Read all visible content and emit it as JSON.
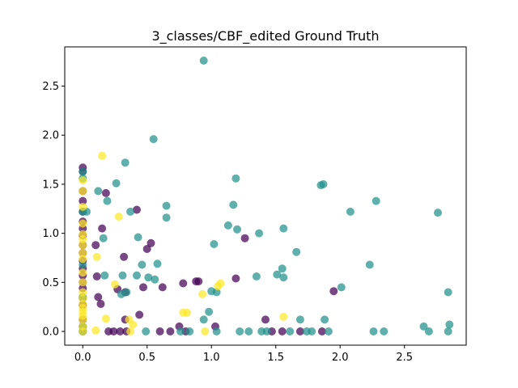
{
  "chart_data": {
    "type": "scatter",
    "title": "3_classes/CBF_edited Ground Truth",
    "xlabel": "",
    "ylabel": "",
    "xlim": [
      -0.14,
      2.98
    ],
    "ylim": [
      -0.14,
      2.9
    ],
    "xticks": [
      "0.0",
      "0.5",
      "1.0",
      "1.5",
      "2.0",
      "2.5"
    ],
    "yticks": [
      "0.0",
      "0.5",
      "1.0",
      "1.5",
      "2.0",
      "2.5"
    ],
    "grid": false,
    "legend": "none",
    "series": [
      {
        "color": "#440154",
        "points": [
          [
            0.0,
            1.67
          ],
          [
            0.0,
            1.63
          ],
          [
            0.0,
            1.43
          ],
          [
            0.0,
            1.33
          ],
          [
            0.0,
            1.22
          ],
          [
            0.0,
            1.12
          ],
          [
            0.0,
            1.05
          ],
          [
            0.0,
            0.98
          ],
          [
            0.0,
            0.88
          ],
          [
            0.0,
            0.8
          ],
          [
            0.0,
            0.72
          ],
          [
            0.0,
            0.64
          ],
          [
            0.0,
            0.57
          ],
          [
            0.0,
            0.5
          ],
          [
            0.0,
            0.44
          ],
          [
            0.0,
            0.34
          ],
          [
            0.0,
            0.27
          ],
          [
            0.0,
            0.12
          ],
          [
            0.0,
            0.05
          ],
          [
            0.0,
            0.0
          ],
          [
            0.1,
            0.88
          ],
          [
            0.11,
            0.56
          ],
          [
            0.12,
            0.35
          ],
          [
            0.14,
            0.28
          ],
          [
            0.15,
            1.05
          ],
          [
            0.18,
            1.41
          ],
          [
            0.2,
            0.0
          ],
          [
            0.24,
            0.0
          ],
          [
            0.27,
            0.43
          ],
          [
            0.29,
            0.0
          ],
          [
            0.32,
            0.76
          ],
          [
            0.33,
            0.4
          ],
          [
            0.33,
            0.12
          ],
          [
            0.34,
            0.0
          ],
          [
            0.42,
            1.24
          ],
          [
            0.44,
            0.17
          ],
          [
            0.47,
            0.45
          ],
          [
            0.5,
            0.84
          ],
          [
            0.53,
            0.9
          ],
          [
            0.6,
            0.0
          ],
          [
            0.62,
            0.45
          ],
          [
            0.68,
            0.0
          ],
          [
            0.75,
            0.05
          ],
          [
            0.78,
            0.49
          ],
          [
            0.8,
            0.0
          ],
          [
            0.88,
            0.51
          ],
          [
            0.9,
            0.51
          ],
          [
            1.03,
            0.05
          ],
          [
            1.19,
            0.54
          ],
          [
            1.26,
            0.95
          ],
          [
            1.42,
            0.12
          ],
          [
            1.47,
            0.0
          ],
          [
            1.55,
            0.0
          ],
          [
            1.69,
            0.0
          ],
          [
            1.86,
            0.0
          ],
          [
            1.95,
            0.41
          ]
        ]
      },
      {
        "color": "#21918c",
        "points": [
          [
            0.0,
            1.63
          ],
          [
            0.0,
            1.56
          ],
          [
            0.0,
            1.22
          ],
          [
            0.0,
            0.68
          ],
          [
            0.0,
            0.35
          ],
          [
            0.0,
            0.05
          ],
          [
            0.0,
            0.0
          ],
          [
            0.03,
            1.22
          ],
          [
            0.12,
            1.43
          ],
          [
            0.16,
            0.95
          ],
          [
            0.17,
            0.57
          ],
          [
            0.19,
            1.33
          ],
          [
            0.26,
            1.51
          ],
          [
            0.3,
            0.38
          ],
          [
            0.31,
            0.57
          ],
          [
            0.33,
            1.72
          ],
          [
            0.34,
            0.4
          ],
          [
            0.37,
            1.22
          ],
          [
            0.42,
            0.57
          ],
          [
            0.43,
            0.96
          ],
          [
            0.46,
            0.68
          ],
          [
            0.49,
            0.0
          ],
          [
            0.51,
            0.55
          ],
          [
            0.55,
            1.96
          ],
          [
            0.56,
            0.53
          ],
          [
            0.58,
            0.69
          ],
          [
            0.65,
            1.28
          ],
          [
            0.65,
            1.16
          ],
          [
            0.76,
            0.0
          ],
          [
            0.83,
            0.0
          ],
          [
            0.94,
            2.76
          ],
          [
            0.94,
            0.12
          ],
          [
            0.98,
            0.2
          ],
          [
            1.0,
            0.41
          ],
          [
            1.02,
            0.89
          ],
          [
            1.04,
            0.4
          ],
          [
            1.04,
            0.0
          ],
          [
            1.13,
            1.08
          ],
          [
            1.17,
            1.29
          ],
          [
            1.19,
            1.56
          ],
          [
            1.2,
            1.04
          ],
          [
            1.22,
            0.0
          ],
          [
            1.29,
            0.0
          ],
          [
            1.35,
            0.56
          ],
          [
            1.37,
            1.0
          ],
          [
            1.39,
            0.0
          ],
          [
            1.43,
            0.0
          ],
          [
            1.51,
            0.58
          ],
          [
            1.55,
            0.64
          ],
          [
            1.56,
            1.05
          ],
          [
            1.56,
            0.55
          ],
          [
            1.61,
            0.0
          ],
          [
            1.66,
            0.81
          ],
          [
            1.69,
            0.12
          ],
          [
            1.74,
            0.0
          ],
          [
            1.78,
            0.0
          ],
          [
            1.85,
            1.49
          ],
          [
            1.87,
            1.5
          ],
          [
            1.88,
            0.12
          ],
          [
            1.91,
            0.0
          ],
          [
            2.01,
            0.45
          ],
          [
            2.08,
            1.22
          ],
          [
            2.23,
            0.68
          ],
          [
            2.26,
            0.0
          ],
          [
            2.28,
            1.33
          ],
          [
            2.34,
            0.0
          ],
          [
            2.65,
            0.05
          ],
          [
            2.69,
            0.0
          ],
          [
            2.76,
            1.21
          ],
          [
            2.84,
            0.0
          ],
          [
            2.84,
            0.4
          ],
          [
            2.85,
            0.07
          ]
        ]
      },
      {
        "color": "#fde725",
        "points": [
          [
            0.0,
            1.54
          ],
          [
            0.0,
            1.43
          ],
          [
            0.0,
            1.27
          ],
          [
            0.0,
            1.1
          ],
          [
            0.0,
            0.99
          ],
          [
            0.0,
            0.94
          ],
          [
            0.0,
            0.88
          ],
          [
            0.0,
            0.8
          ],
          [
            0.0,
            0.74
          ],
          [
            0.0,
            0.6
          ],
          [
            0.0,
            0.5
          ],
          [
            0.0,
            0.4
          ],
          [
            0.0,
            0.34
          ],
          [
            0.0,
            0.28
          ],
          [
            0.0,
            0.24
          ],
          [
            0.0,
            0.2
          ],
          [
            0.0,
            0.16
          ],
          [
            0.0,
            0.12
          ],
          [
            0.0,
            0.05
          ],
          [
            0.0,
            0.0
          ],
          [
            0.1,
            0.01
          ],
          [
            0.11,
            0.76
          ],
          [
            0.15,
            1.79
          ],
          [
            0.18,
            0.13
          ],
          [
            0.25,
            0.48
          ],
          [
            0.28,
            1.17
          ],
          [
            0.36,
            0.12
          ],
          [
            0.37,
            0.0
          ],
          [
            0.39,
            0.07
          ],
          [
            0.78,
            0.19
          ],
          [
            0.81,
            0.19
          ],
          [
            0.93,
            0.38
          ],
          [
            0.95,
            0.0
          ],
          [
            1.05,
            0.46
          ],
          [
            1.07,
            0.49
          ],
          [
            1.56,
            0.15
          ]
        ]
      }
    ]
  }
}
